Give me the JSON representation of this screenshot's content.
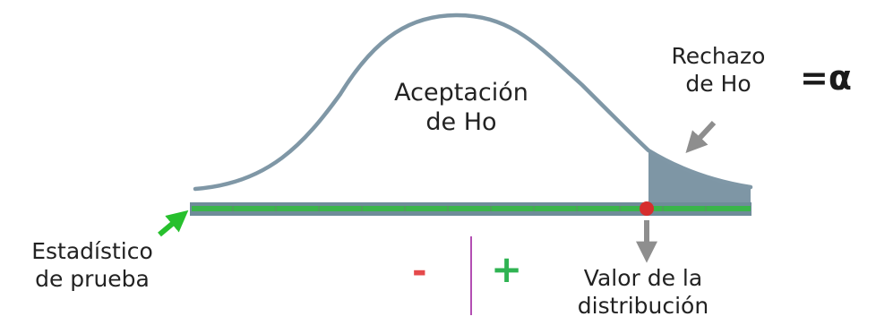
{
  "diagram": {
    "acceptance_region": {
      "line1": "Aceptación",
      "line2": "de Ho"
    },
    "rejection_region": {
      "line1": "Rechazo",
      "line2": "de Ho"
    },
    "alpha_label": "=α",
    "test_statistic": {
      "line1": "Estadístico",
      "line2": "de prueba"
    },
    "distribution_value": {
      "line1": "Valor de la",
      "line2": "distribución"
    },
    "negative_sign": "-",
    "positive_sign": "+"
  },
  "colors": {
    "curve": "#7f97a6",
    "rejection_fill": "#7e96a5",
    "axis_green": "#3ab54a",
    "axis_border": "#5b7c8a",
    "critical_point": "#d62e2e",
    "arrow_green": "#27c02d",
    "arrow_gray": "#8e8e8e",
    "divider": "#b34fb3"
  }
}
